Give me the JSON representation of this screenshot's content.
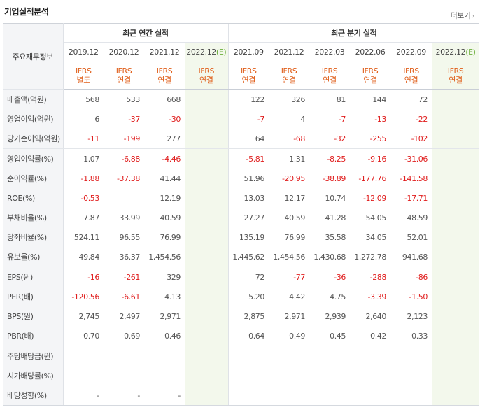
{
  "section_title": "기업실적분석",
  "more_label": "더보기",
  "more_arrow": "›",
  "colors": {
    "negative": "#e01d1d",
    "ifrs": "#e0601c",
    "estimate_bg": "#f3f8ec",
    "header_bg": "#f4f5f7"
  },
  "header": {
    "row_label": "주요재무정보",
    "annual_group": "최근 연간 실적",
    "quarter_group": "최근 분기 실적",
    "periods": [
      "2019.12",
      "2020.12",
      "2021.12",
      "2022.12(E)",
      "2021.09",
      "2021.12",
      "2022.03",
      "2022.06",
      "2022.09",
      "2022.12(E)"
    ],
    "ifrs_top": [
      "IFRS",
      "IFRS",
      "IFRS",
      "IFRS",
      "IFRS",
      "IFRS",
      "IFRS",
      "IFRS",
      "IFRS",
      "IFRS"
    ],
    "ifrs_bottom": [
      "별도",
      "연결",
      "연결",
      "연결",
      "연결",
      "연결",
      "연결",
      "연결",
      "연결",
      "연결"
    ]
  },
  "rows": [
    {
      "label": "매출액(억원)",
      "values": [
        "568",
        "533",
        "668",
        "",
        "122",
        "326",
        "81",
        "144",
        "72",
        ""
      ]
    },
    {
      "label": "영업이익(억원)",
      "values": [
        "6",
        "-37",
        "-30",
        "",
        "-7",
        "4",
        "-7",
        "-13",
        "-22",
        ""
      ]
    },
    {
      "label": "당기순이익(억원)",
      "values": [
        "-11",
        "-199",
        "277",
        "",
        "64",
        "-68",
        "-32",
        "-255",
        "-102",
        ""
      ]
    },
    {
      "label": "영업이익률(%)",
      "values": [
        "1.07",
        "-6.88",
        "-4.46",
        "",
        "-5.81",
        "1.31",
        "-8.25",
        "-9.16",
        "-31.06",
        ""
      ]
    },
    {
      "label": "순이익률(%)",
      "values": [
        "-1.88",
        "-37.38",
        "41.44",
        "",
        "51.96",
        "-20.95",
        "-38.89",
        "-177.76",
        "-141.58",
        ""
      ]
    },
    {
      "label": "ROE(%)",
      "values": [
        "-0.53",
        "",
        "12.19",
        "",
        "13.03",
        "12.17",
        "10.74",
        "-12.09",
        "-17.71",
        ""
      ]
    },
    {
      "label": "부채비율(%)",
      "values": [
        "7.87",
        "33.99",
        "40.59",
        "",
        "27.27",
        "40.59",
        "41.28",
        "54.05",
        "48.59",
        ""
      ]
    },
    {
      "label": "당좌비율(%)",
      "values": [
        "524.11",
        "96.55",
        "76.99",
        "",
        "135.19",
        "76.99",
        "35.58",
        "34.05",
        "52.01",
        ""
      ]
    },
    {
      "label": "유보율(%)",
      "values": [
        "49.84",
        "36.37",
        "1,454.56",
        "",
        "1,445.62",
        "1,454.56",
        "1,430.68",
        "1,272.78",
        "941.68",
        ""
      ]
    },
    {
      "label": "EPS(원)",
      "values": [
        "-16",
        "-261",
        "329",
        "",
        "72",
        "-77",
        "-36",
        "-288",
        "-86",
        ""
      ]
    },
    {
      "label": "PER(배)",
      "values": [
        "-120.56",
        "-6.61",
        "4.13",
        "",
        "5.20",
        "4.42",
        "4.75",
        "-3.39",
        "-1.50",
        ""
      ]
    },
    {
      "label": "BPS(원)",
      "values": [
        "2,745",
        "2,497",
        "2,971",
        "",
        "2,875",
        "2,971",
        "2,939",
        "2,640",
        "2,123",
        ""
      ]
    },
    {
      "label": "PBR(배)",
      "values": [
        "0.70",
        "0.69",
        "0.46",
        "",
        "0.64",
        "0.49",
        "0.45",
        "0.42",
        "0.33",
        ""
      ]
    },
    {
      "label": "주당배당금(원)",
      "values": [
        "",
        "",
        "",
        "",
        "",
        "",
        "",
        "",
        "",
        ""
      ]
    },
    {
      "label": "시가배당률(%)",
      "values": [
        "",
        "",
        "",
        "",
        "",
        "",
        "",
        "",
        "",
        ""
      ]
    },
    {
      "label": "배당성향(%)",
      "values": [
        "-",
        "-",
        "-",
        "",
        "",
        "",
        "",
        "",
        "",
        ""
      ]
    }
  ]
}
